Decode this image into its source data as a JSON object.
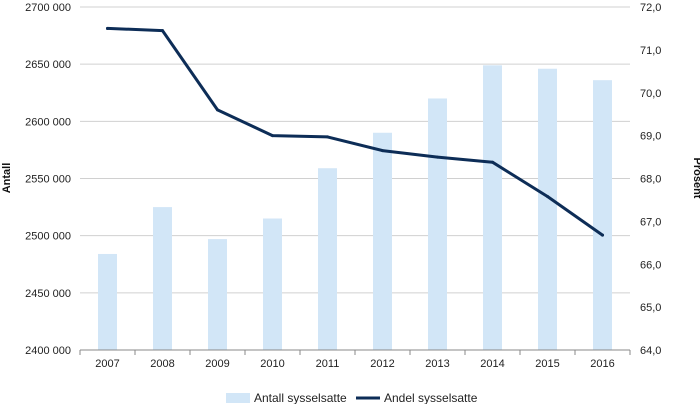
{
  "chart_data": {
    "type": "bar",
    "title": "",
    "categories": [
      "2007",
      "2008",
      "2009",
      "2010",
      "2011",
      "2012",
      "2013",
      "2014",
      "2015",
      "2016"
    ],
    "series": [
      {
        "name": "Antall sysselsatte",
        "type": "bar",
        "axis": "left",
        "color": "#d2e6f7",
        "values": [
          2484000,
          2525000,
          2497000,
          2515000,
          2559000,
          2590000,
          2620000,
          2649000,
          2646000,
          2636000
        ]
      },
      {
        "name": "Andel sysselsatte",
        "type": "line",
        "axis": "right",
        "color": "#0d2d57",
        "values": [
          71.5,
          71.45,
          69.6,
          69.0,
          68.97,
          68.65,
          68.5,
          68.38,
          67.58,
          66.68
        ]
      }
    ],
    "y_left": {
      "label": "Antall",
      "ylim": [
        2400000,
        2700000
      ],
      "ticks": [
        "2400 000",
        "2450 000",
        "2500 000",
        "2550 000",
        "2600 000",
        "2650 000",
        "2700 000"
      ]
    },
    "y_right": {
      "label": "Prosent",
      "ylim": [
        64.0,
        72.0
      ],
      "ticks": [
        "64,0",
        "65,0",
        "66,0",
        "67,0",
        "68,0",
        "69,0",
        "70,0",
        "71,0",
        "72,0"
      ]
    },
    "grid": true,
    "legend_position": "bottom"
  }
}
